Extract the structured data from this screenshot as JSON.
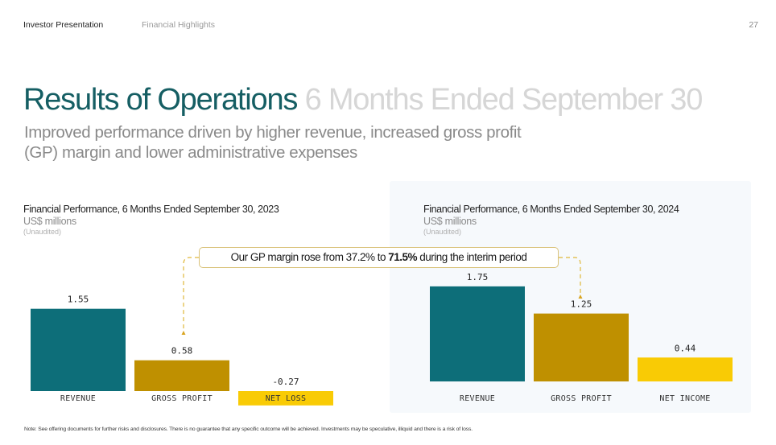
{
  "header": {
    "deck_title": "Investor Presentation",
    "section": "Financial Highlights",
    "page_number": "27"
  },
  "title": {
    "main": "Results of Operations",
    "sub": "6 Months Ended September 30"
  },
  "subtitle": "Improved performance driven by higher revenue, increased gross profit (GP) margin and lower administrative expenses",
  "callout": {
    "prefix": "Our GP margin rose from 37.2% to ",
    "highlight": "71.5%",
    "suffix": " during the interim period"
  },
  "colors": {
    "revenue": "#0d6e79",
    "gross_profit": "#bf9000",
    "net": "#f9cb05",
    "title_accent": "#155e63",
    "connector": "#e0b83a"
  },
  "chart_data": [
    {
      "type": "bar",
      "title": "Financial Performance, 6 Months Ended September 30, 2023",
      "units": "US$ millions",
      "note": "(Unaudited)",
      "categories": [
        "REVENUE",
        "GROSS PROFIT",
        "NET LOSS"
      ],
      "values": [
        1.55,
        0.58,
        -0.27
      ],
      "value_labels": [
        "1.55",
        "0.58",
        "-0.27"
      ],
      "xlabel": "",
      "ylabel": "",
      "grid": false
    },
    {
      "type": "bar",
      "title": "Financial Performance, 6 Months Ended September 30, 2024",
      "units": "US$ millions",
      "note": "(Unaudited)",
      "categories": [
        "REVENUE",
        "GROSS PROFIT",
        "NET INCOME"
      ],
      "values": [
        1.75,
        1.25,
        0.44
      ],
      "value_labels": [
        "1.75",
        "1.25",
        "0.44"
      ],
      "xlabel": "",
      "ylabel": "",
      "grid": false
    }
  ],
  "footnote": "Note: See offering documents for further risks and disclosures. There is no guarantee that any specific outcome will be achieved. Investments may be speculative, illiquid and there is a risk of loss."
}
